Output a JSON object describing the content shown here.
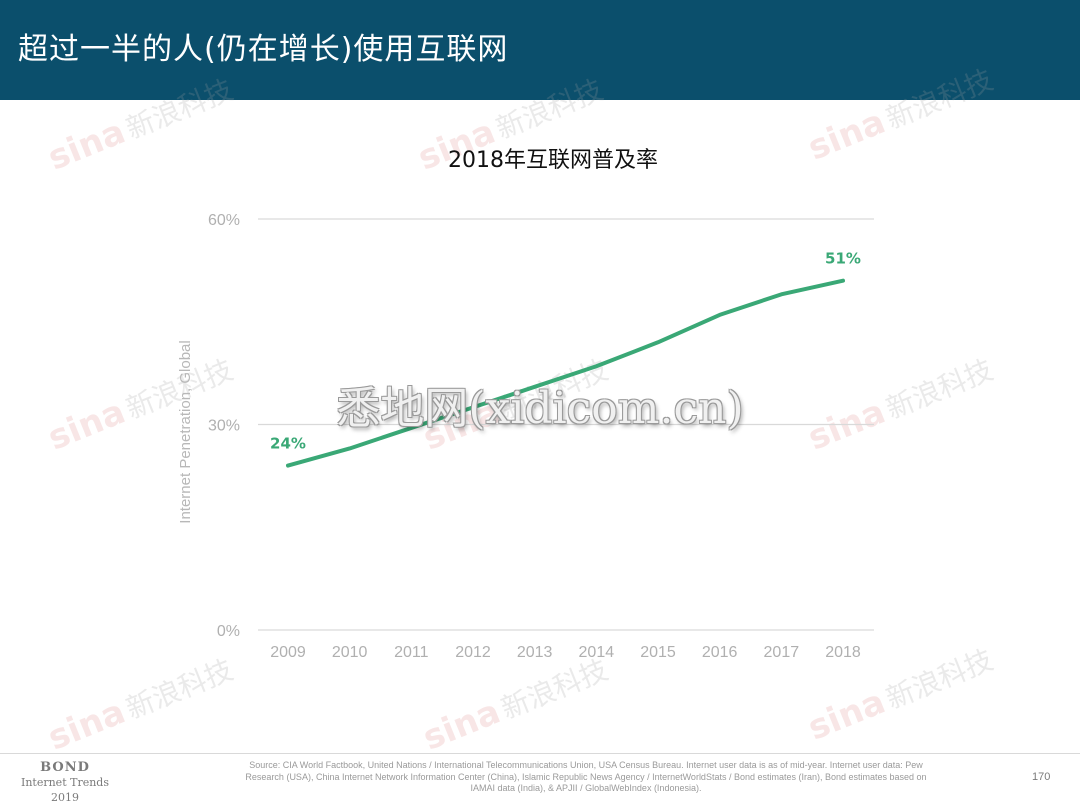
{
  "header": {
    "title": "超过一半的人(仍在增长)使用互联网"
  },
  "chart_data": {
    "type": "line",
    "title": "2018年互联网普及率",
    "xlabel": "",
    "ylabel": "Internet Penetration, Global",
    "x": [
      "2009",
      "2010",
      "2011",
      "2012",
      "2013",
      "2014",
      "2015",
      "2016",
      "2017",
      "2018"
    ],
    "series": [
      {
        "values": [
          24,
          26.5,
          29.5,
          32.5,
          35.5,
          38.5,
          42,
          46,
          49,
          51
        ],
        "color": "#3aa876"
      }
    ],
    "yticks": [
      "0%",
      "30%",
      "60%"
    ],
    "ylim": [
      0,
      60
    ],
    "data_labels": [
      {
        "index": 0,
        "text": "24%"
      },
      {
        "index": 9,
        "text": "51%"
      }
    ],
    "grid": true,
    "legend": "none"
  },
  "watermarks": {
    "center": "悉地网(xidicom.cn)",
    "sina": "sina",
    "sina_cn": "新浪科技"
  },
  "footer": {
    "brand_line1": "BOND",
    "brand_line2": "Internet Trends",
    "brand_line3": "2019",
    "source": "Source: CIA World Factbook, United Nations / International Telecommunications Union, USA Census Bureau. Internet user data is as of mid-year. Internet user data: Pew Research (USA), China Internet Network Information Center (China), Islamic Republic News Agency / InternetWorldStats / Bond estimates (Iran), Bond estimates based on IAMAI data (India), & APJII / GlobalWebIndex (Indonesia).",
    "page_number": "170"
  },
  "colors": {
    "header_bg": "#0b4f6c",
    "line": "#3aa876",
    "grid": "#d9d9d9",
    "axis_text": "#b0b0b0"
  }
}
